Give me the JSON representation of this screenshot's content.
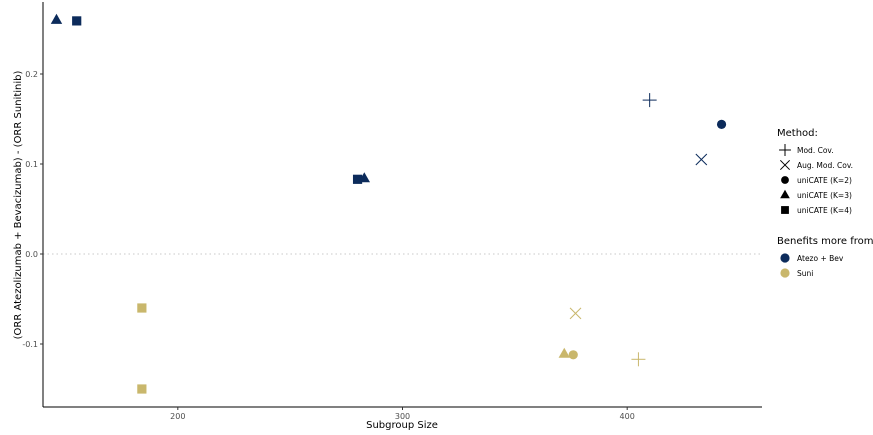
{
  "colors": {
    "atezo_bev": "#0c2b5b",
    "suni": "#c9b76c",
    "legend_shape": "#000000",
    "zero_line": "#c8c8c8"
  },
  "chart_data": {
    "type": "scatter",
    "xlabel": "Subgroup Size",
    "ylabel": "(ORR Atezolizumab + Bevacizumab) - (ORR Sunitinib)",
    "xlim": [
      140,
      460
    ],
    "ylim": [
      -0.17,
      0.28
    ],
    "x_ticks": [
      200,
      300,
      400
    ],
    "y_ticks": [
      -0.1,
      0.0,
      0.1,
      0.2
    ],
    "x_tick_labels": [
      "200",
      "300",
      "400"
    ],
    "y_tick_labels": [
      "-0.1",
      "0.0",
      "0.1",
      "0.2"
    ],
    "grid": false,
    "reference_line": {
      "y": 0.0,
      "style": "dotted"
    },
    "legend_placement": "right",
    "legends": [
      {
        "title": "Method:",
        "items": [
          {
            "label": "Mod. Cov.",
            "shape": "plus"
          },
          {
            "label": "Aug. Mod. Cov.",
            "shape": "cross"
          },
          {
            "label": "uniCATE (K=2)",
            "shape": "circle"
          },
          {
            "label": "uniCATE (K=3)",
            "shape": "triangle"
          },
          {
            "label": "uniCATE (K=4)",
            "shape": "square"
          }
        ]
      },
      {
        "title": "Benefits more from:",
        "items": [
          {
            "label": "Atezo + Bev",
            "group": "atezo_bev"
          },
          {
            "label": "Suni",
            "group": "suni"
          }
        ]
      }
    ],
    "points": [
      {
        "x": 146,
        "y": 0.26,
        "shape": "triangle",
        "group": "atezo_bev"
      },
      {
        "x": 155,
        "y": 0.259,
        "shape": "square",
        "group": "atezo_bev"
      },
      {
        "x": 280,
        "y": 0.083,
        "shape": "square",
        "group": "atezo_bev"
      },
      {
        "x": 283,
        "y": 0.084,
        "shape": "triangle",
        "group": "atezo_bev"
      },
      {
        "x": 410,
        "y": 0.171,
        "shape": "plus",
        "group": "atezo_bev"
      },
      {
        "x": 433,
        "y": 0.105,
        "shape": "cross",
        "group": "atezo_bev"
      },
      {
        "x": 442,
        "y": 0.144,
        "shape": "circle",
        "group": "atezo_bev"
      },
      {
        "x": 184,
        "y": -0.06,
        "shape": "square",
        "group": "suni"
      },
      {
        "x": 184,
        "y": -0.15,
        "shape": "square",
        "group": "suni"
      },
      {
        "x": 372,
        "y": -0.111,
        "shape": "triangle",
        "group": "suni"
      },
      {
        "x": 376,
        "y": -0.112,
        "shape": "circle",
        "group": "suni"
      },
      {
        "x": 377,
        "y": -0.066,
        "shape": "cross",
        "group": "suni"
      },
      {
        "x": 405,
        "y": -0.117,
        "shape": "plus",
        "group": "suni"
      }
    ]
  }
}
